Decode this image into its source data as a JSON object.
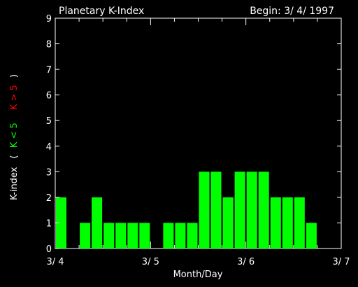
{
  "chart_data": {
    "type": "bar",
    "title": "Planetary K-Index",
    "begin_label": "Begin: 3/ 4/ 1997",
    "xlabel": "Month/Day",
    "ylabel_parts": {
      "main": "K-index",
      "open": "(",
      "low": "K < 5",
      "high": "K > 5",
      "close": ")"
    },
    "xticks": [
      "3/ 4",
      "3/ 5",
      "3/ 6",
      "3/ 7"
    ],
    "yticks": [
      "0",
      "1",
      "2",
      "3",
      "4",
      "5",
      "6",
      "7",
      "8",
      "9"
    ],
    "ylim": [
      0,
      9
    ],
    "x_range_days": [
      0,
      3
    ],
    "interval_hours": 3,
    "values": [
      2,
      0,
      1,
      2,
      1,
      1,
      1,
      1,
      0,
      1,
      1,
      1,
      3,
      3,
      2,
      3,
      3,
      3,
      2,
      2,
      2,
      1,
      0,
      0
    ],
    "grid": false
  },
  "colors": {
    "background": "#000000",
    "axes": "#ffffff",
    "text": "#ffffff",
    "bar_low": "#00ff00",
    "bar_high": "#ff0000"
  }
}
